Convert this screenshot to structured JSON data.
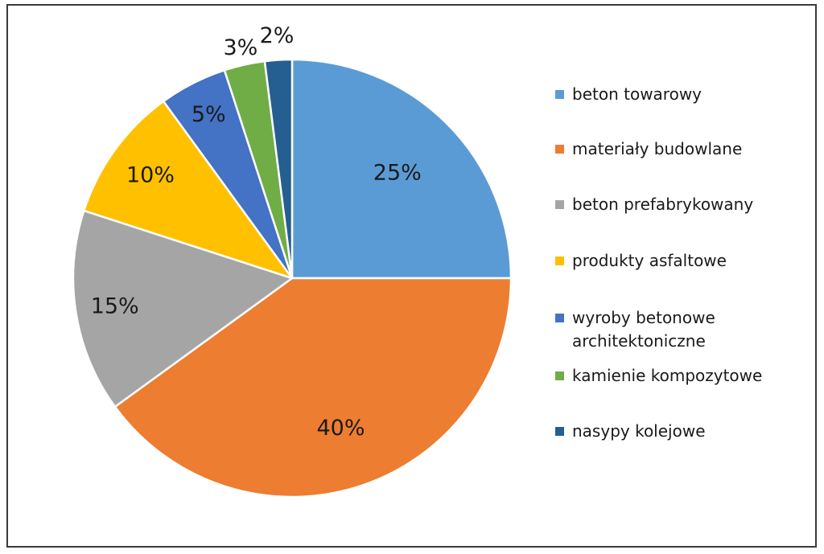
{
  "chart_data": {
    "type": "pie",
    "title": "",
    "slices": [
      {
        "label": "beton towarowy",
        "value": 25,
        "value_label": "25%",
        "color": "#5B9BD5"
      },
      {
        "label": "materiały budowlane",
        "value": 40,
        "value_label": "40%",
        "color": "#ED7D31"
      },
      {
        "label": "beton prefabrykowany",
        "value": 15,
        "value_label": "15%",
        "color": "#A5A5A5"
      },
      {
        "label": "produkty asfaltowe",
        "value": 10,
        "value_label": "10%",
        "color": "#FFC000"
      },
      {
        "label": "wyroby betonowe\narchitektoniczne",
        "value": 5,
        "value_label": "5%",
        "color": "#4472C4"
      },
      {
        "label": "kamienie kompozytowe",
        "value": 3,
        "value_label": "3%",
        "color": "#70AD47"
      },
      {
        "label": "nasypy kolejowe",
        "value": 2,
        "value_label": "2%",
        "color": "#255E91"
      }
    ],
    "start_angle": "12 o'clock",
    "direction": "clockwise",
    "legend_position": "right"
  }
}
